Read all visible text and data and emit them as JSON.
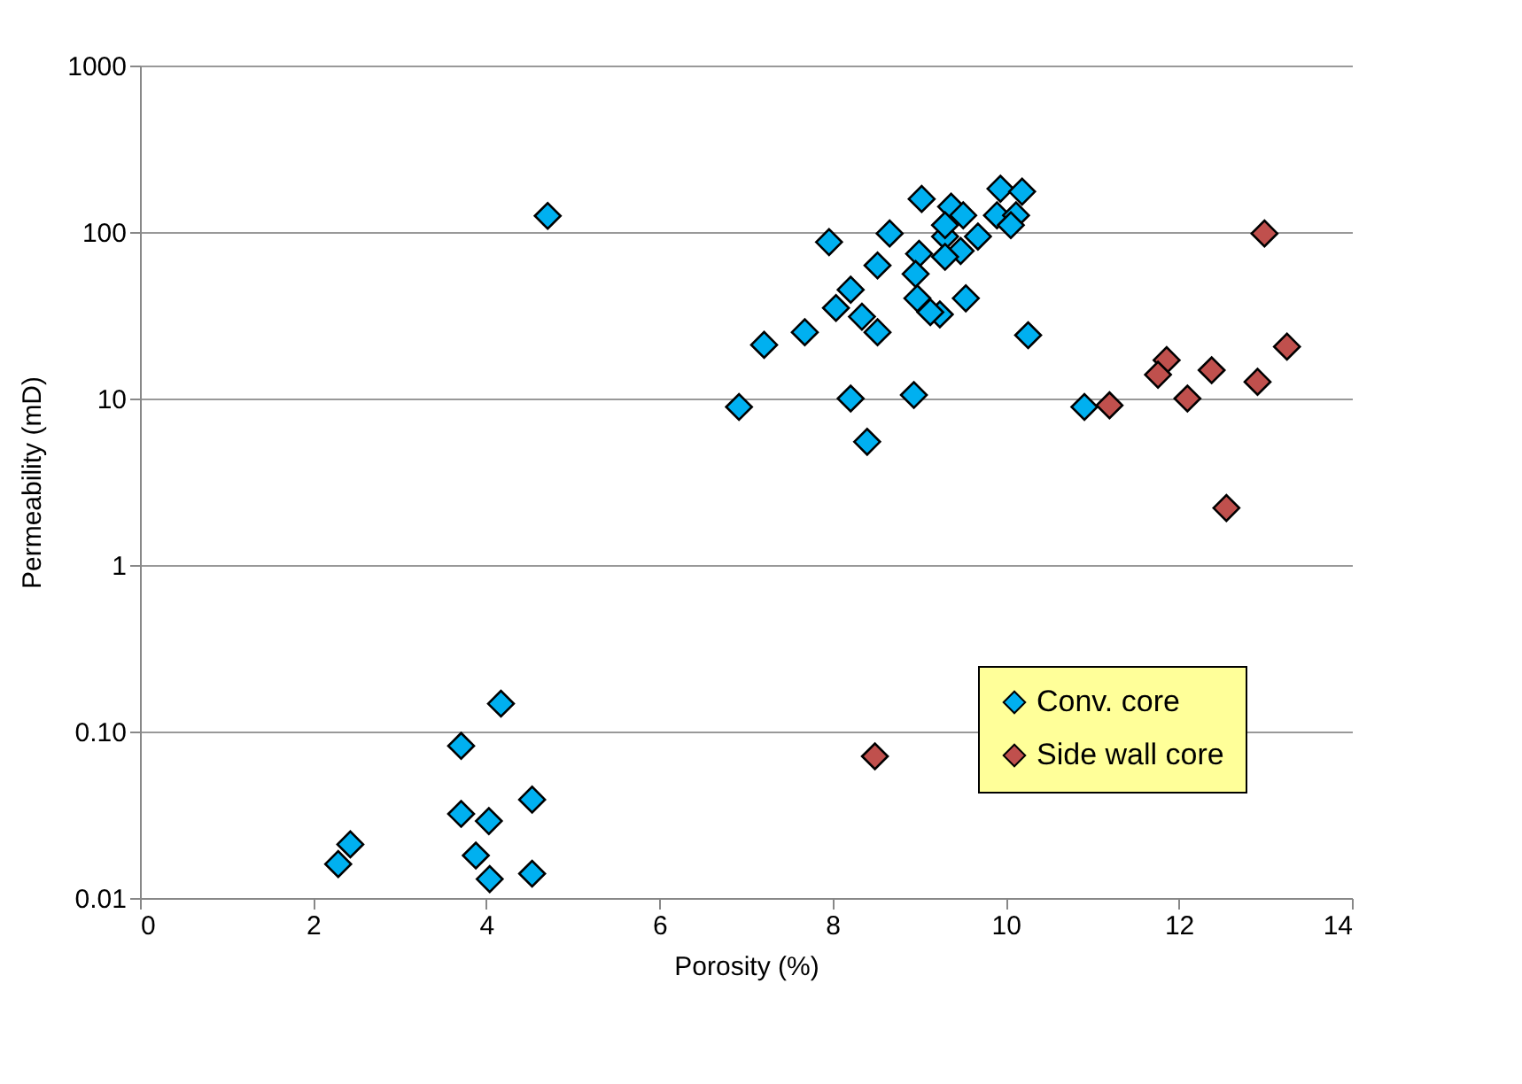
{
  "chart_data": {
    "type": "scatter",
    "xlabel": "Porosity (%)",
    "ylabel": "Permeability  (mD)",
    "xlim": [
      0,
      14
    ],
    "xticks": [
      0,
      2,
      4,
      6,
      8,
      10,
      12,
      14
    ],
    "ylim": [
      0.01,
      1000
    ],
    "yticks": [
      0.01,
      {
        "value": 0.1,
        "label": "0.10"
      },
      1,
      10,
      100,
      1000
    ],
    "log": "y",
    "grid": "y",
    "marker": "diamond",
    "legend": "bottom right",
    "series": [
      {
        "name": "Conv. core",
        "color": "#00b0f0",
        "x": [
          4.71,
          9.03,
          9.94,
          10.19,
          9.37,
          9.51,
          9.9,
          10.12,
          10.06,
          9.3,
          9.68,
          9.3,
          9.48,
          9.3,
          8.66,
          7.96,
          9.0,
          8.52,
          8.96,
          8.21,
          8.98,
          9.54,
          8.04,
          8.34,
          9.24,
          9.13,
          8.52,
          7.68,
          7.21,
          10.26,
          6.92,
          8.21,
          8.94,
          8.4,
          10.91,
          4.17,
          3.71,
          4.53,
          3.71,
          4.03,
          2.43,
          2.29,
          3.88,
          4.04,
          4.53
        ],
        "values": [
          125,
          158,
          182,
          175,
          142,
          126,
          126,
          126,
          110,
          94,
          94,
          110,
          77,
          71,
          98,
          87,
          74,
          63,
          56,
          45,
          40,
          40,
          35,
          31,
          32,
          33,
          25,
          25,
          21,
          24,
          8.9,
          10,
          10.5,
          5.5,
          8.9,
          0.147,
          0.082,
          0.039,
          0.032,
          0.029,
          0.021,
          0.016,
          0.018,
          0.013,
          0.014
        ]
      },
      {
        "name": "Side wall core",
        "color": "#c0504d",
        "x": [
          12.99,
          13.25,
          11.86,
          11.76,
          12.38,
          12.91,
          12.1,
          11.2,
          12.55,
          8.49
        ],
        "values": [
          98,
          20.5,
          17,
          13.9,
          14.8,
          12.6,
          10,
          9.1,
          2.2,
          0.071
        ]
      }
    ]
  }
}
